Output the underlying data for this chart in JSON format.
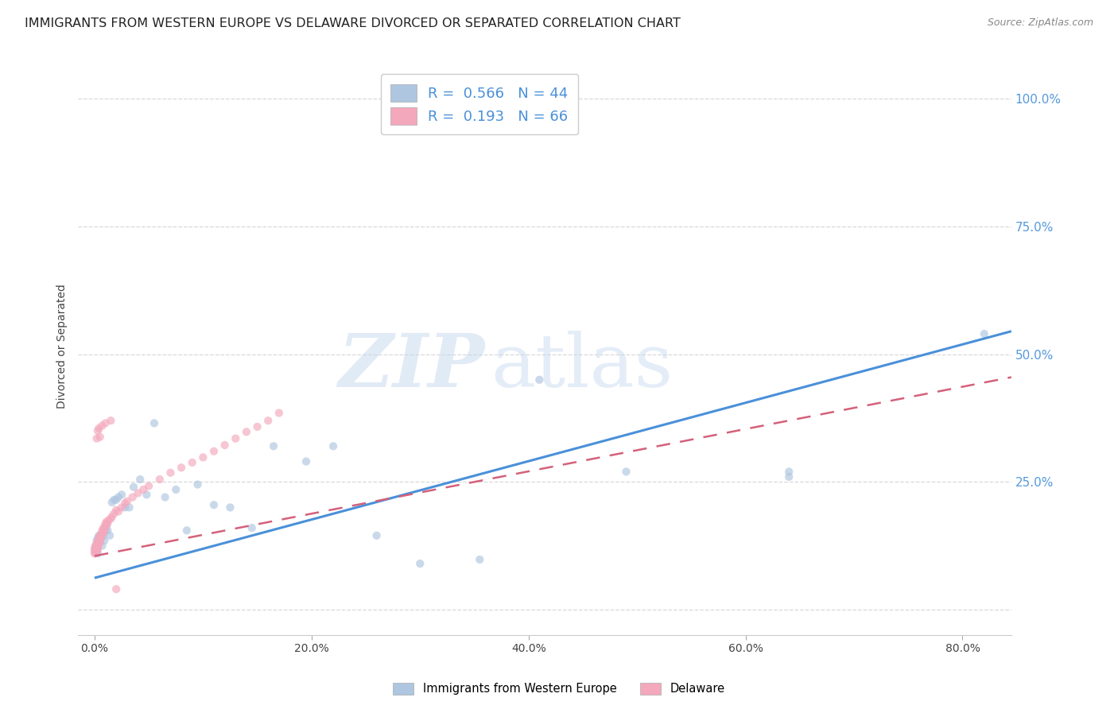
{
  "title": "IMMIGRANTS FROM WESTERN EUROPE VS DELAWARE DIVORCED OR SEPARATED CORRELATION CHART",
  "source": "Source: ZipAtlas.com",
  "ylabel": "Divorced or Separated",
  "x_tick_labels": [
    "0.0%",
    "20.0%",
    "40.0%",
    "60.0%",
    "80.0%"
  ],
  "x_tick_positions": [
    0.0,
    0.2,
    0.4,
    0.6,
    0.8
  ],
  "y_tick_labels": [
    "",
    "25.0%",
    "50.0%",
    "75.0%",
    "100.0%"
  ],
  "y_tick_positions": [
    0.0,
    0.25,
    0.5,
    0.75,
    1.0
  ],
  "xlim": [
    -0.015,
    0.845
  ],
  "ylim": [
    -0.05,
    1.08
  ],
  "legend_entries": [
    {
      "label": "Immigrants from Western Europe",
      "color": "#aec6e0",
      "R": "0.566",
      "N": "44"
    },
    {
      "label": "Delaware",
      "color": "#f4a8bc",
      "R": "0.193",
      "N": "66"
    }
  ],
  "blue_scatter_x": [
    0.001,
    0.002,
    0.002,
    0.003,
    0.003,
    0.004,
    0.005,
    0.006,
    0.007,
    0.008,
    0.009,
    0.01,
    0.011,
    0.012,
    0.014,
    0.016,
    0.018,
    0.02,
    0.022,
    0.025,
    0.028,
    0.032,
    0.036,
    0.042,
    0.048,
    0.055,
    0.065,
    0.075,
    0.085,
    0.095,
    0.11,
    0.125,
    0.145,
    0.165,
    0.195,
    0.22,
    0.26,
    0.3,
    0.355,
    0.41,
    0.49,
    0.64,
    0.82,
    0.64
  ],
  "blue_scatter_y": [
    0.125,
    0.135,
    0.115,
    0.14,
    0.11,
    0.145,
    0.14,
    0.14,
    0.125,
    0.145,
    0.135,
    0.155,
    0.165,
    0.155,
    0.145,
    0.21,
    0.215,
    0.215,
    0.22,
    0.225,
    0.2,
    0.2,
    0.24,
    0.255,
    0.225,
    0.365,
    0.22,
    0.235,
    0.155,
    0.245,
    0.205,
    0.2,
    0.16,
    0.32,
    0.29,
    0.32,
    0.145,
    0.09,
    0.098,
    0.45,
    0.27,
    0.27,
    0.54,
    0.26
  ],
  "pink_scatter_x": [
    0.0,
    0.0,
    0.0,
    0.001,
    0.001,
    0.001,
    0.001,
    0.002,
    0.002,
    0.002,
    0.002,
    0.003,
    0.003,
    0.003,
    0.003,
    0.004,
    0.004,
    0.004,
    0.005,
    0.005,
    0.005,
    0.006,
    0.006,
    0.007,
    0.007,
    0.008,
    0.008,
    0.009,
    0.009,
    0.01,
    0.01,
    0.011,
    0.012,
    0.013,
    0.015,
    0.016,
    0.018,
    0.02,
    0.022,
    0.025,
    0.028,
    0.03,
    0.035,
    0.04,
    0.045,
    0.05,
    0.06,
    0.07,
    0.08,
    0.09,
    0.1,
    0.11,
    0.12,
    0.13,
    0.14,
    0.15,
    0.16,
    0.17,
    0.002,
    0.003,
    0.004,
    0.005,
    0.007,
    0.01,
    0.015,
    0.02
  ],
  "pink_scatter_y": [
    0.12,
    0.115,
    0.11,
    0.125,
    0.12,
    0.115,
    0.11,
    0.13,
    0.125,
    0.12,
    0.115,
    0.135,
    0.128,
    0.122,
    0.118,
    0.14,
    0.132,
    0.128,
    0.145,
    0.138,
    0.132,
    0.148,
    0.14,
    0.155,
    0.148,
    0.158,
    0.15,
    0.162,
    0.155,
    0.168,
    0.16,
    0.172,
    0.168,
    0.175,
    0.178,
    0.182,
    0.188,
    0.195,
    0.192,
    0.2,
    0.208,
    0.212,
    0.22,
    0.228,
    0.235,
    0.242,
    0.255,
    0.268,
    0.278,
    0.288,
    0.298,
    0.31,
    0.322,
    0.335,
    0.348,
    0.358,
    0.37,
    0.385,
    0.335,
    0.35,
    0.355,
    0.338,
    0.36,
    0.365,
    0.37,
    0.04
  ],
  "blue_line_x": [
    0.0,
    0.845
  ],
  "blue_line_y": [
    0.062,
    0.545
  ],
  "pink_line_x": [
    0.0,
    0.845
  ],
  "pink_line_y": [
    0.105,
    0.455
  ],
  "scatter_size": 55,
  "scatter_alpha": 0.65,
  "blue_color": "#4a90d9",
  "blue_light": "#aec6e0",
  "pink_color": "#f4a8bc",
  "pink_dark": "#d4607a",
  "watermark_zip": "ZIP",
  "watermark_atlas": "atlas",
  "grid_color": "#d8d8d8",
  "title_fontsize": 11.5,
  "axis_label_fontsize": 10,
  "tick_fontsize": 10,
  "legend_fontsize": 13,
  "right_tick_color": "#5599dd"
}
